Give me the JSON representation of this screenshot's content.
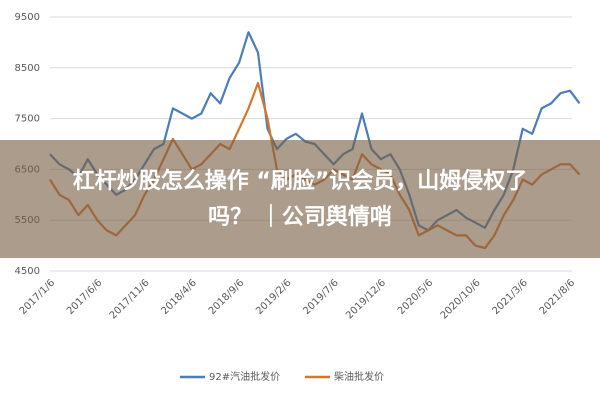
{
  "chart_data": {
    "type": "line",
    "categories": [
      "2017/1/6",
      null,
      null,
      null,
      null,
      "2017/6/6",
      null,
      null,
      null,
      null,
      "2017/11/6",
      null,
      null,
      null,
      null,
      "2018/4/6",
      null,
      null,
      null,
      null,
      "2018/9/6",
      null,
      null,
      null,
      null,
      "2019/2/6",
      null,
      null,
      null,
      null,
      "2019/7/6",
      null,
      null,
      null,
      null,
      "2019/12/6",
      null,
      null,
      null,
      null,
      "2020/5/6",
      null,
      null,
      null,
      null,
      "2020/10/6",
      null,
      null,
      null,
      null,
      "2021/3/6",
      null,
      null,
      null,
      null,
      "2021/8/6",
      null
    ],
    "series": [
      {
        "name": "92#汽油批发价",
        "color": "#4a7ebb",
        "values": [
          6800,
          6600,
          6500,
          6350,
          6700,
          6400,
          6200,
          6000,
          6100,
          6300,
          6600,
          6900,
          7000,
          7700,
          7600,
          7500,
          7600,
          8000,
          7800,
          8300,
          8600,
          9200,
          8800,
          7300,
          6900,
          7100,
          7200,
          7050,
          7000,
          6800,
          6600,
          6800,
          6900,
          7600,
          6900,
          6700,
          6800,
          6500,
          6000,
          5400,
          5300,
          5500,
          5600,
          5700,
          5550,
          5450,
          5350,
          5700,
          6000,
          6500,
          7300,
          7200,
          7700,
          7800,
          8000,
          8050,
          7800
        ]
      },
      {
        "name": "柴油批发价",
        "color": "#d9752b",
        "values": [
          6300,
          6000,
          5900,
          5600,
          5800,
          5500,
          5300,
          5200,
          5400,
          5600,
          6000,
          6300,
          6700,
          7100,
          6800,
          6500,
          6600,
          6800,
          7000,
          6900,
          7300,
          7700,
          8200,
          7500,
          6500,
          6300,
          6400,
          6300,
          6200,
          6300,
          6500,
          6400,
          6300,
          6800,
          6600,
          6500,
          6400,
          6000,
          5700,
          5200,
          5300,
          5400,
          5300,
          5200,
          5200,
          5000,
          4950,
          5200,
          5600,
          5900,
          6300,
          6200,
          6400,
          6500,
          6600,
          6600,
          6400
        ]
      }
    ],
    "ylim": [
      4500,
      9500
    ],
    "yticks": [
      4500,
      5500,
      6500,
      7500,
      8500,
      9500
    ],
    "grid": true,
    "legend": "bottom"
  },
  "banner": {
    "lines": [
      "杠杆炒股怎么操作 “刷脸”识会员，山姆侵权了",
      "吗？ ｜公司舆情哨"
    ]
  }
}
